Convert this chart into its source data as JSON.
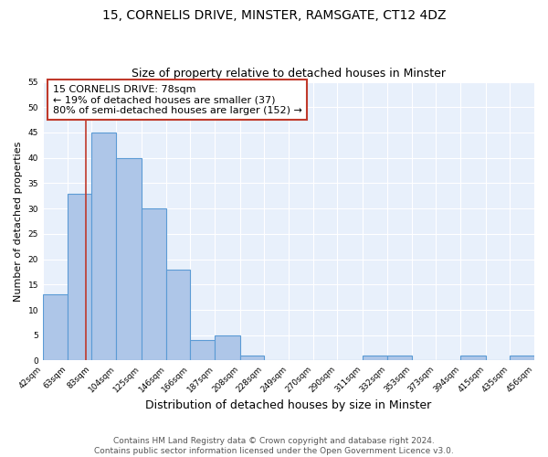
{
  "title": "15, CORNELIS DRIVE, MINSTER, RAMSGATE, CT12 4DZ",
  "subtitle": "Size of property relative to detached houses in Minster",
  "xlabel": "Distribution of detached houses by size in Minster",
  "ylabel": "Number of detached properties",
  "bin_edges": [
    42,
    63,
    83,
    104,
    125,
    146,
    166,
    187,
    208,
    228,
    249,
    270,
    290,
    311,
    332,
    353,
    373,
    394,
    415,
    435,
    456
  ],
  "bar_heights": [
    13,
    33,
    45,
    40,
    30,
    18,
    4,
    5,
    1,
    0,
    0,
    0,
    0,
    1,
    1,
    0,
    0,
    1,
    0,
    1
  ],
  "bar_color": "#aec6e8",
  "bar_edge_color": "#5b9bd5",
  "property_size": 78,
  "vline_color": "#c0392b",
  "annotation_text": "15 CORNELIS DRIVE: 78sqm\n← 19% of detached houses are smaller (37)\n80% of semi-detached houses are larger (152) →",
  "annotation_box_color": "#c0392b",
  "ylim": [
    0,
    55
  ],
  "yticks": [
    0,
    5,
    10,
    15,
    20,
    25,
    30,
    35,
    40,
    45,
    50,
    55
  ],
  "background_color": "#e8f0fb",
  "footer_line1": "Contains HM Land Registry data © Crown copyright and database right 2024.",
  "footer_line2": "Contains public sector information licensed under the Open Government Licence v3.0.",
  "title_fontsize": 10,
  "subtitle_fontsize": 9,
  "xlabel_fontsize": 9,
  "ylabel_fontsize": 8,
  "annotation_fontsize": 8,
  "footer_fontsize": 6.5,
  "tick_fontsize": 6.5
}
